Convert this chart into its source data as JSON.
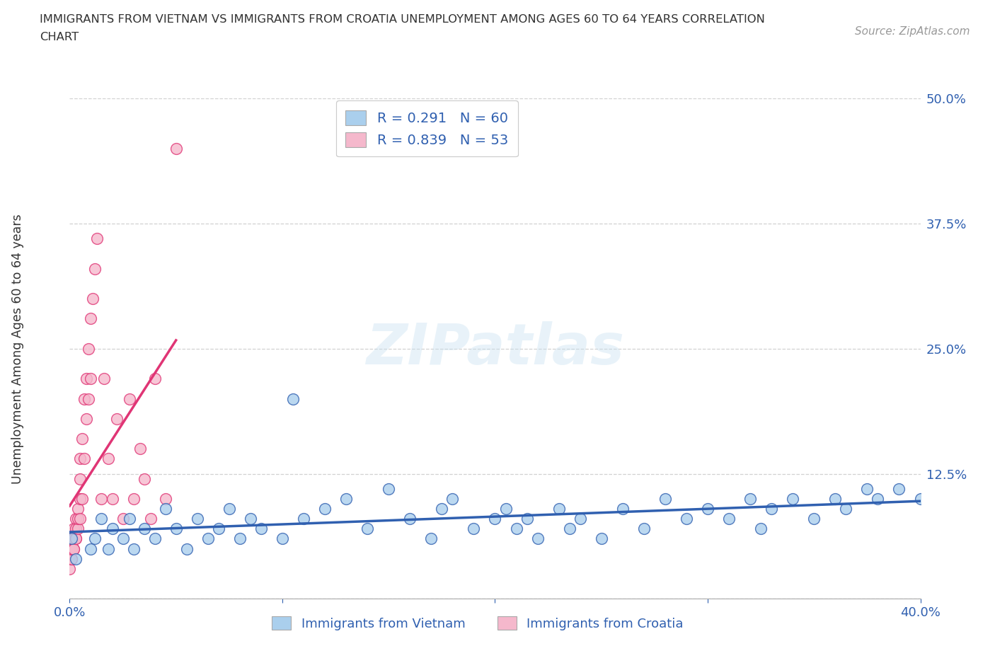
{
  "title_line1": "IMMIGRANTS FROM VIETNAM VS IMMIGRANTS FROM CROATIA UNEMPLOYMENT AMONG AGES 60 TO 64 YEARS CORRELATION",
  "title_line2": "CHART",
  "source": "Source: ZipAtlas.com",
  "ylabel": "Unemployment Among Ages 60 to 64 years",
  "xlim": [
    0.0,
    0.4
  ],
  "ylim": [
    0.0,
    0.5
  ],
  "xticks": [
    0.0,
    0.1,
    0.2,
    0.3,
    0.4
  ],
  "xtick_labels": [
    "0.0%",
    "",
    "",
    "",
    "40.0%"
  ],
  "ytick_positions": [
    0.0,
    0.125,
    0.25,
    0.375,
    0.5
  ],
  "ytick_labels": [
    "",
    "12.5%",
    "25.0%",
    "37.5%",
    "50.0%"
  ],
  "watermark": "ZIPatlas",
  "legend_R_vietnam": "0.291",
  "legend_N_vietnam": "60",
  "legend_R_croatia": "0.839",
  "legend_N_croatia": "53",
  "legend_label_vietnam": "Immigrants from Vietnam",
  "legend_label_croatia": "Immigrants from Croatia",
  "color_vietnam": "#aacfed",
  "color_vietnam_line": "#3060b0",
  "color_croatia": "#f5b8cc",
  "color_croatia_line": "#e03575",
  "background_color": "#ffffff",
  "grid_color": "#cccccc",
  "title_color": "#333333",
  "tick_color": "#3060b0",
  "vietnam_x": [
    0.001,
    0.003,
    0.01,
    0.012,
    0.015,
    0.018,
    0.02,
    0.025,
    0.028,
    0.03,
    0.035,
    0.04,
    0.045,
    0.05,
    0.055,
    0.06,
    0.065,
    0.07,
    0.075,
    0.08,
    0.085,
    0.09,
    0.1,
    0.105,
    0.11,
    0.12,
    0.13,
    0.14,
    0.15,
    0.16,
    0.17,
    0.175,
    0.18,
    0.19,
    0.2,
    0.205,
    0.21,
    0.215,
    0.22,
    0.23,
    0.235,
    0.24,
    0.25,
    0.26,
    0.27,
    0.28,
    0.29,
    0.3,
    0.31,
    0.32,
    0.325,
    0.33,
    0.34,
    0.35,
    0.36,
    0.365,
    0.375,
    0.38,
    0.39,
    0.4
  ],
  "vietnam_y": [
    0.06,
    0.04,
    0.05,
    0.06,
    0.08,
    0.05,
    0.07,
    0.06,
    0.08,
    0.05,
    0.07,
    0.06,
    0.09,
    0.07,
    0.05,
    0.08,
    0.06,
    0.07,
    0.09,
    0.06,
    0.08,
    0.07,
    0.06,
    0.2,
    0.08,
    0.09,
    0.1,
    0.07,
    0.11,
    0.08,
    0.06,
    0.09,
    0.1,
    0.07,
    0.08,
    0.09,
    0.07,
    0.08,
    0.06,
    0.09,
    0.07,
    0.08,
    0.06,
    0.09,
    0.07,
    0.1,
    0.08,
    0.09,
    0.08,
    0.1,
    0.07,
    0.09,
    0.1,
    0.08,
    0.1,
    0.09,
    0.11,
    0.1,
    0.11,
    0.1
  ],
  "croatia_x": [
    0.0,
    0.0,
    0.0,
    0.0,
    0.0,
    0.0,
    0.001,
    0.001,
    0.001,
    0.001,
    0.001,
    0.002,
    0.002,
    0.002,
    0.002,
    0.003,
    0.003,
    0.003,
    0.003,
    0.004,
    0.004,
    0.004,
    0.005,
    0.005,
    0.005,
    0.005,
    0.006,
    0.006,
    0.007,
    0.007,
    0.008,
    0.008,
    0.009,
    0.009,
    0.01,
    0.01,
    0.011,
    0.012,
    0.013,
    0.015,
    0.016,
    0.018,
    0.02,
    0.022,
    0.025,
    0.028,
    0.03,
    0.033,
    0.035,
    0.038,
    0.04,
    0.045,
    0.05
  ],
  "croatia_y": [
    0.04,
    0.05,
    0.06,
    0.04,
    0.05,
    0.03,
    0.04,
    0.05,
    0.04,
    0.06,
    0.05,
    0.05,
    0.06,
    0.07,
    0.05,
    0.06,
    0.07,
    0.08,
    0.06,
    0.07,
    0.08,
    0.09,
    0.08,
    0.1,
    0.12,
    0.14,
    0.1,
    0.16,
    0.14,
    0.2,
    0.18,
    0.22,
    0.2,
    0.25,
    0.22,
    0.28,
    0.3,
    0.33,
    0.36,
    0.1,
    0.22,
    0.14,
    0.1,
    0.18,
    0.08,
    0.2,
    0.1,
    0.15,
    0.12,
    0.08,
    0.22,
    0.1,
    0.45
  ]
}
